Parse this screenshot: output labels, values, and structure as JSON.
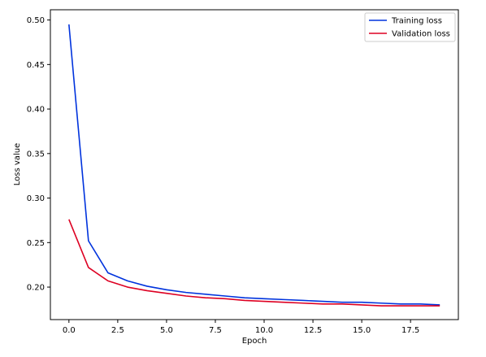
{
  "chart_data": {
    "type": "line",
    "title": "",
    "xlabel": "Epoch",
    "ylabel": "Loss value",
    "xlim": [
      -0.95,
      19.95
    ],
    "ylim": [
      0.1635,
      0.5115
    ],
    "xticks": [
      0.0,
      2.5,
      5.0,
      7.5,
      10.0,
      12.5,
      15.0,
      17.5
    ],
    "xtick_labels": [
      "0.0",
      "2.5",
      "5.0",
      "7.5",
      "10.0",
      "12.5",
      "15.0",
      "17.5"
    ],
    "yticks": [
      0.2,
      0.25,
      0.3,
      0.35,
      0.4,
      0.45,
      0.5
    ],
    "ytick_labels": [
      "0.20",
      "0.25",
      "0.30",
      "0.35",
      "0.40",
      "0.45",
      "0.50"
    ],
    "grid": false,
    "legend_position": "top-right",
    "x": [
      0,
      1,
      2,
      3,
      4,
      5,
      6,
      7,
      8,
      9,
      10,
      11,
      12,
      13,
      14,
      15,
      16,
      17,
      18,
      19
    ],
    "series": [
      {
        "name": "Training loss",
        "color": "#0033dd",
        "values": [
          0.495,
          0.252,
          0.216,
          0.207,
          0.201,
          0.197,
          0.194,
          0.192,
          0.19,
          0.188,
          0.187,
          0.186,
          0.185,
          0.184,
          0.183,
          0.183,
          0.182,
          0.181,
          0.181,
          0.18
        ]
      },
      {
        "name": "Validation loss",
        "color": "#dd0022",
        "values": [
          0.276,
          0.222,
          0.207,
          0.2,
          0.196,
          0.193,
          0.19,
          0.188,
          0.187,
          0.185,
          0.184,
          0.183,
          0.182,
          0.181,
          0.181,
          0.18,
          0.179,
          0.179,
          0.179,
          0.179
        ]
      }
    ]
  }
}
